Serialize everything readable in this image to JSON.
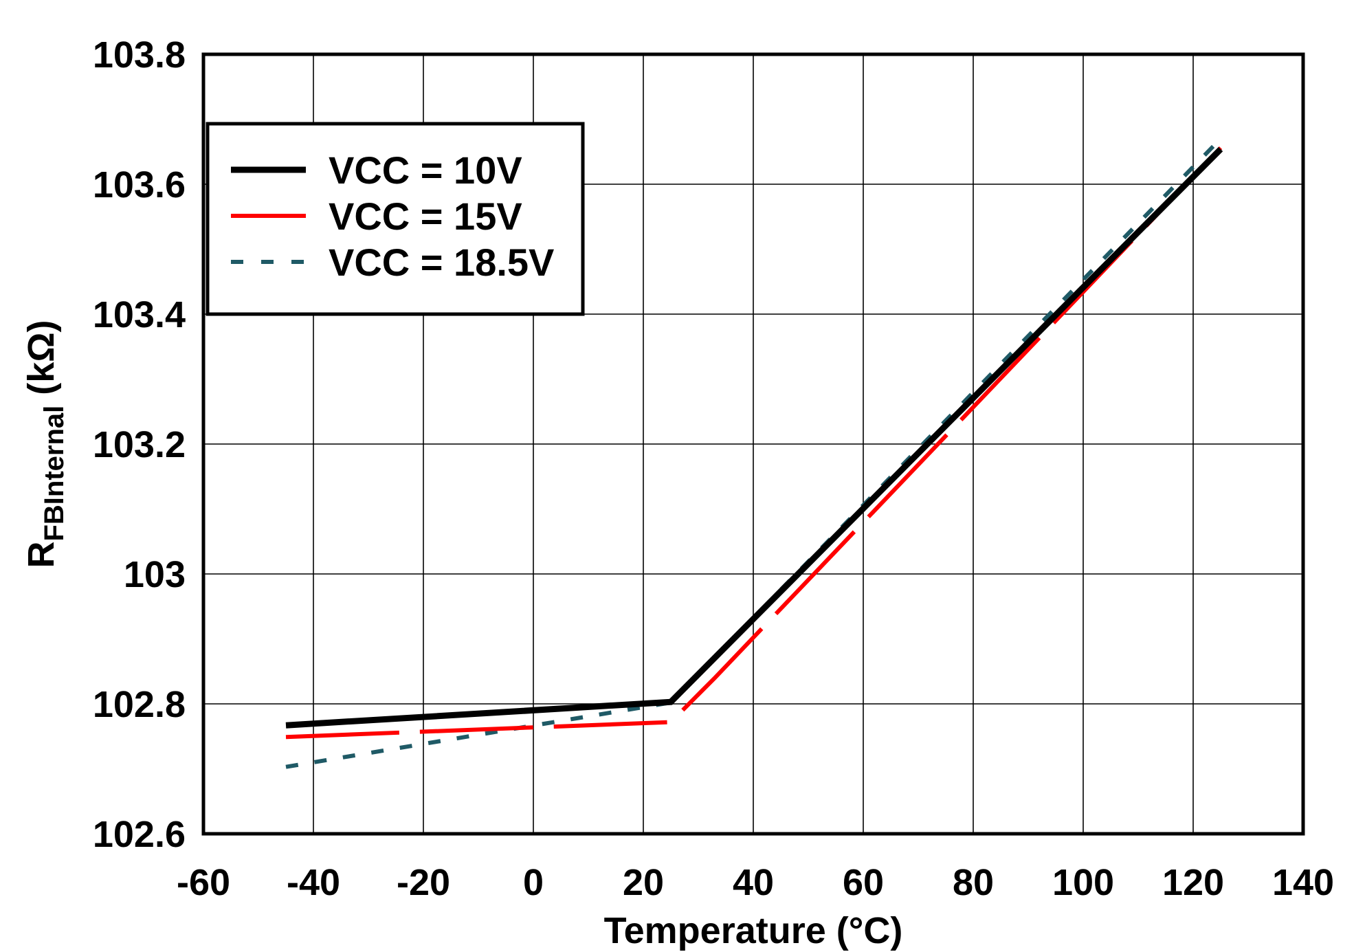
{
  "chart_data": {
    "type": "line",
    "title": "",
    "xlabel": "Temperature (°C)",
    "ylabel": {
      "main": "R",
      "subscript": "FBInternal",
      "unit": " (kΩ)"
    },
    "xlim": [
      -60,
      140
    ],
    "ylim": [
      102.6,
      103.8
    ],
    "x_ticks": [
      -60,
      -40,
      -20,
      0,
      20,
      40,
      60,
      80,
      100,
      120,
      140
    ],
    "x_tick_labels": [
      "-60",
      "-40",
      "-20",
      "0",
      "20",
      "40",
      "60",
      "80",
      "100",
      "120",
      "140"
    ],
    "y_ticks": [
      102.6,
      102.8,
      103,
      103.2,
      103.4,
      103.6,
      103.8
    ],
    "y_tick_labels": [
      "102.6",
      "102.8",
      "103",
      "103.2",
      "103.4",
      "103.6",
      "103.8"
    ],
    "grid": true,
    "legend_position": "top-left",
    "series": [
      {
        "name": "VCC = 10V",
        "color": "#000000",
        "style": "solid",
        "x": [
          -45,
          25,
          125
        ],
        "y": [
          102.767,
          102.803,
          103.654
        ]
      },
      {
        "name": "VCC = 15V",
        "color": "#ff0000",
        "style": "long-dash",
        "x": [
          -45,
          25,
          33,
          125
        ],
        "y": [
          102.749,
          102.772,
          102.84,
          103.656
        ]
      },
      {
        "name": "VCC = 18.5V",
        "color": "#1f5a66",
        "style": "dash",
        "x": [
          -45,
          25,
          125
        ],
        "y": [
          102.703,
          102.802,
          103.67
        ]
      }
    ]
  }
}
